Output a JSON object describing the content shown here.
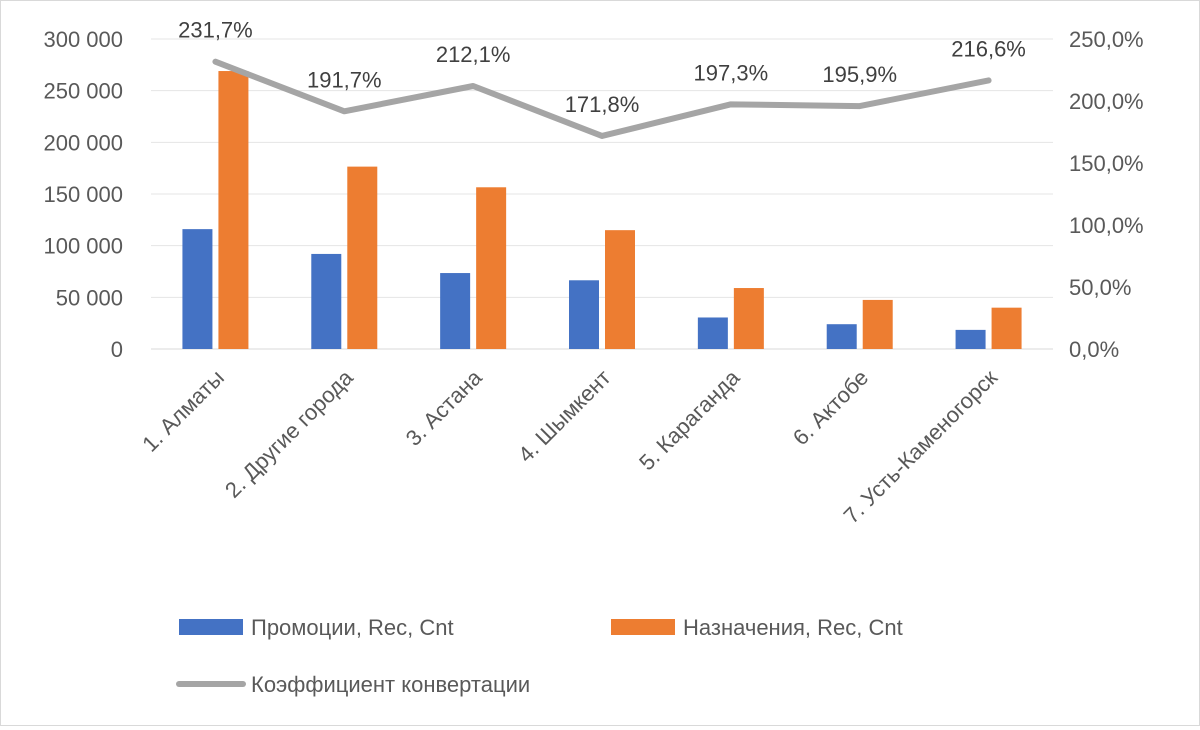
{
  "chart_data": {
    "type": "bar",
    "categories": [
      "1. Алматы",
      "2. Другие города",
      "3. Астана",
      "4. Шымкент",
      "5. Караганда",
      "6. Актобе",
      "7. Усть-Каменогорск"
    ],
    "series": [
      {
        "name": "Промоции, Rec, Cnt",
        "type": "bar",
        "axis": "left",
        "color": "#4472C4",
        "values": [
          116000,
          92000,
          73500,
          66500,
          30500,
          24000,
          18500
        ]
      },
      {
        "name": "Назначения, Rec, Cnt",
        "type": "bar",
        "axis": "left",
        "color": "#ED7D31",
        "values": [
          269000,
          176500,
          156500,
          115000,
          59000,
          47500,
          40000
        ]
      },
      {
        "name": "Коэффициент конвертации",
        "type": "line",
        "axis": "right",
        "color": "#A5A5A5",
        "values": [
          231.7,
          191.7,
          212.1,
          171.8,
          197.3,
          195.9,
          216.6
        ],
        "data_labels": [
          "231,7%",
          "191,7%",
          "212,1%",
          "171,8%",
          "197,3%",
          "195,9%",
          "216,6%"
        ]
      }
    ],
    "y_left": {
      "min": 0,
      "max": 300000,
      "ticks": [
        "0",
        "50 000",
        "100 000",
        "150 000",
        "200 000",
        "250 000",
        "300 000"
      ]
    },
    "y_right": {
      "min": 0,
      "max": 250,
      "ticks": [
        "0,0%",
        "50,0%",
        "100,0%",
        "150,0%",
        "200,0%",
        "250,0%"
      ]
    },
    "grid": true,
    "legend_position": "bottom",
    "title": "",
    "xlabel": "",
    "ylabel": ""
  }
}
